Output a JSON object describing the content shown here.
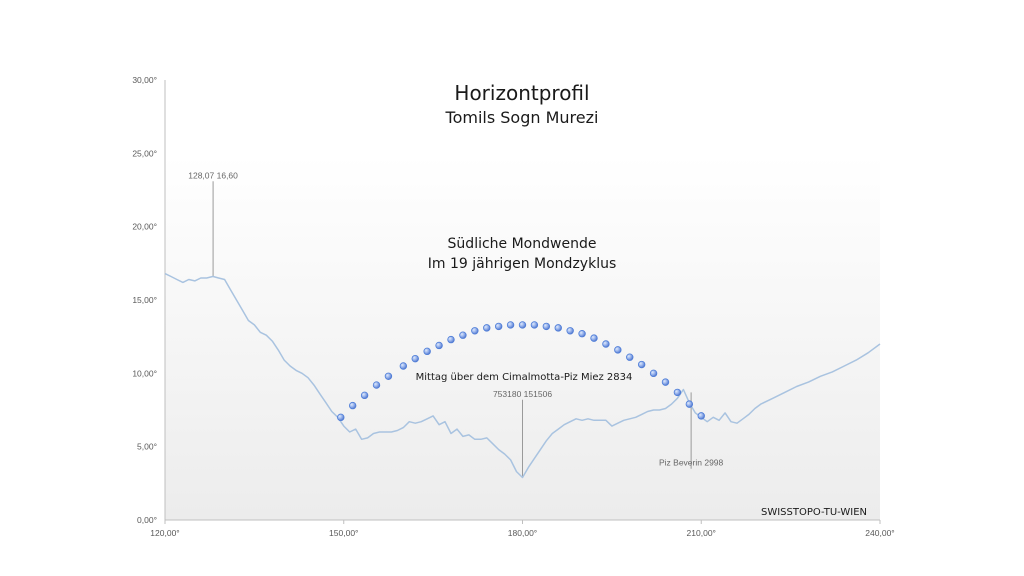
{
  "chart_data": {
    "type": "line",
    "title": "Horizontprofil",
    "subtitle": "Tomils Sogn Murezi",
    "xlabel": "",
    "ylabel": "",
    "xlim": [
      120,
      240
    ],
    "ylim": [
      0,
      30
    ],
    "x_ticks": [
      "120,00°",
      "150,00°",
      "180,00°",
      "210,00°",
      "240,00°"
    ],
    "y_ticks": [
      "0,00°",
      "5,00°",
      "10,00°",
      "15,00°",
      "20,00°",
      "25,00°",
      "30,00°"
    ],
    "grid": false,
    "series": [
      {
        "kind": "line",
        "color": "#a9c3e0",
        "points": [
          [
            120,
            16.8
          ],
          [
            121,
            16.6
          ],
          [
            122,
            16.4
          ],
          [
            123,
            16.2
          ],
          [
            124,
            16.4
          ],
          [
            125,
            16.3
          ],
          [
            126,
            16.5
          ],
          [
            127,
            16.5
          ],
          [
            128,
            16.6
          ],
          [
            128.07,
            16.6
          ],
          [
            129,
            16.5
          ],
          [
            130,
            16.4
          ],
          [
            131,
            15.7
          ],
          [
            132,
            15.0
          ],
          [
            133,
            14.3
          ],
          [
            134,
            13.6
          ],
          [
            135,
            13.3
          ],
          [
            136,
            12.8
          ],
          [
            137,
            12.6
          ],
          [
            138,
            12.2
          ],
          [
            139,
            11.6
          ],
          [
            140,
            10.9
          ],
          [
            141,
            10.5
          ],
          [
            142,
            10.2
          ],
          [
            143,
            10.0
          ],
          [
            144,
            9.7
          ],
          [
            145,
            9.2
          ],
          [
            146,
            8.6
          ],
          [
            147,
            8.0
          ],
          [
            148,
            7.4
          ],
          [
            149,
            7.0
          ],
          [
            150,
            6.4
          ],
          [
            151,
            6.0
          ],
          [
            152,
            6.2
          ],
          [
            153,
            5.5
          ],
          [
            154,
            5.6
          ],
          [
            155,
            5.9
          ],
          [
            156,
            6.0
          ],
          [
            157,
            6.0
          ],
          [
            158,
            6.0
          ],
          [
            159,
            6.1
          ],
          [
            160,
            6.3
          ],
          [
            161,
            6.7
          ],
          [
            162,
            6.6
          ],
          [
            163,
            6.7
          ],
          [
            164,
            6.9
          ],
          [
            165,
            7.1
          ],
          [
            166,
            6.5
          ],
          [
            167,
            6.7
          ],
          [
            168,
            5.9
          ],
          [
            169,
            6.2
          ],
          [
            170,
            5.7
          ],
          [
            171,
            5.8
          ],
          [
            172,
            5.5
          ],
          [
            173,
            5.5
          ],
          [
            174,
            5.6
          ],
          [
            175,
            5.2
          ],
          [
            176,
            4.8
          ],
          [
            177,
            4.5
          ],
          [
            178,
            4.1
          ],
          [
            179,
            3.3
          ],
          [
            180,
            2.9
          ],
          [
            181,
            3.6
          ],
          [
            182,
            4.2
          ],
          [
            183,
            4.8
          ],
          [
            184,
            5.4
          ],
          [
            185,
            5.9
          ],
          [
            186,
            6.2
          ],
          [
            187,
            6.5
          ],
          [
            188,
            6.7
          ],
          [
            189,
            6.9
          ],
          [
            190,
            6.8
          ],
          [
            191,
            6.9
          ],
          [
            192,
            6.8
          ],
          [
            193,
            6.8
          ],
          [
            194,
            6.8
          ],
          [
            195,
            6.4
          ],
          [
            196,
            6.6
          ],
          [
            197,
            6.8
          ],
          [
            198,
            6.9
          ],
          [
            199,
            7.0
          ],
          [
            200,
            7.2
          ],
          [
            201,
            7.4
          ],
          [
            202,
            7.5
          ],
          [
            203,
            7.5
          ],
          [
            204,
            7.6
          ],
          [
            205,
            7.9
          ],
          [
            206,
            8.3
          ],
          [
            207,
            8.9
          ],
          [
            208,
            8.0
          ],
          [
            209,
            7.3
          ],
          [
            210,
            7.0
          ],
          [
            211,
            6.7
          ],
          [
            212,
            7.0
          ],
          [
            213,
            6.8
          ],
          [
            214,
            7.3
          ],
          [
            215,
            6.7
          ],
          [
            216,
            6.6
          ],
          [
            217,
            6.9
          ],
          [
            218,
            7.2
          ],
          [
            219,
            7.6
          ],
          [
            220,
            7.9
          ],
          [
            222,
            8.3
          ],
          [
            224,
            8.7
          ],
          [
            226,
            9.1
          ],
          [
            228,
            9.4
          ],
          [
            230,
            9.8
          ],
          [
            232,
            10.1
          ],
          [
            234,
            10.5
          ],
          [
            236,
            10.9
          ],
          [
            238,
            11.4
          ],
          [
            240,
            12.0
          ]
        ]
      },
      {
        "kind": "scatter",
        "color": "#4f7ed8",
        "points": [
          [
            149.5,
            7.0
          ],
          [
            151.5,
            7.8
          ],
          [
            153.5,
            8.5
          ],
          [
            155.5,
            9.2
          ],
          [
            157.5,
            9.8
          ],
          [
            160,
            10.5
          ],
          [
            162,
            11.0
          ],
          [
            164,
            11.5
          ],
          [
            166,
            11.9
          ],
          [
            168,
            12.3
          ],
          [
            170,
            12.6
          ],
          [
            172,
            12.9
          ],
          [
            174,
            13.1
          ],
          [
            176,
            13.2
          ],
          [
            178,
            13.3
          ],
          [
            180,
            13.3
          ],
          [
            182,
            13.3
          ],
          [
            184,
            13.2
          ],
          [
            186,
            13.1
          ],
          [
            188,
            12.9
          ],
          [
            190,
            12.7
          ],
          [
            192,
            12.4
          ],
          [
            194,
            12.0
          ],
          [
            196,
            11.6
          ],
          [
            198,
            11.1
          ],
          [
            200,
            10.6
          ],
          [
            202,
            10.0
          ],
          [
            204,
            9.4
          ],
          [
            206,
            8.7
          ],
          [
            208,
            7.9
          ],
          [
            210,
            7.1
          ]
        ]
      }
    ],
    "annotations": [
      {
        "text": "128,07 16,60",
        "x": 128.07,
        "y": 16.6,
        "label_y": 23.3
      },
      {
        "text": "753180 151506",
        "x": 180,
        "y": 2.9,
        "label_y": 8.4
      },
      {
        "text": "Piz Beverin 2998",
        "x": 208.3,
        "y": 8.7,
        "label_y": 3.7
      }
    ],
    "texts": {
      "moon_line1": "Südliche Mondwende",
      "moon_line2": "Im 19 jährigen Mondzyklus",
      "noon": "Mittag über dem Cimalmotta-Piz Miez 2834",
      "credit": "SWISSTOPO-TU-WIEN"
    }
  }
}
